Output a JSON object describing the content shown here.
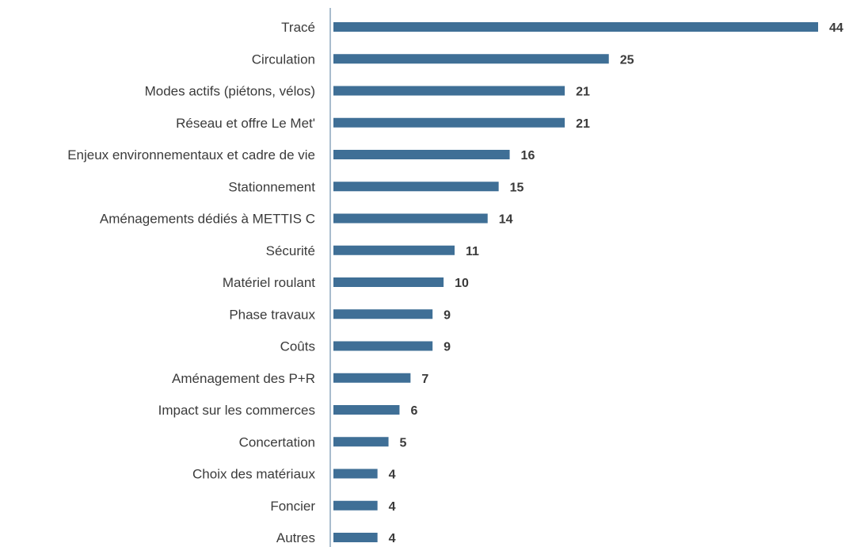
{
  "chart_data": {
    "type": "bar",
    "orientation": "horizontal",
    "categories": [
      "Tracé",
      "Circulation",
      "Modes actifs (piétons, vélos)",
      "Réseau et offre Le Met'",
      "Enjeux environnementaux et cadre de vie",
      "Stationnement",
      "Aménagements dédiés à METTIS C",
      "Sécurité",
      "Matériel roulant",
      "Phase travaux",
      "Coûts",
      "Aménagement des P+R",
      "Impact sur les commerces",
      "Concertation",
      "Choix des matériaux",
      "Foncier",
      "Autres"
    ],
    "values": [
      44,
      25,
      21,
      21,
      16,
      15,
      14,
      11,
      10,
      9,
      9,
      7,
      6,
      5,
      4,
      4,
      4
    ],
    "data_labels": [
      "44",
      "25",
      "21",
      "21",
      "16",
      "15",
      "14",
      "11",
      "10",
      "9",
      "9",
      "7",
      "6",
      "5",
      "4",
      "4",
      "4"
    ],
    "xlim": [
      0,
      44
    ],
    "grid": false,
    "legend": "none",
    "colors": {
      "bar": "#3f6f96",
      "axis": "#a9bccd",
      "label_text": "#3b3b3b",
      "value_text": "#3a3a3a"
    }
  }
}
